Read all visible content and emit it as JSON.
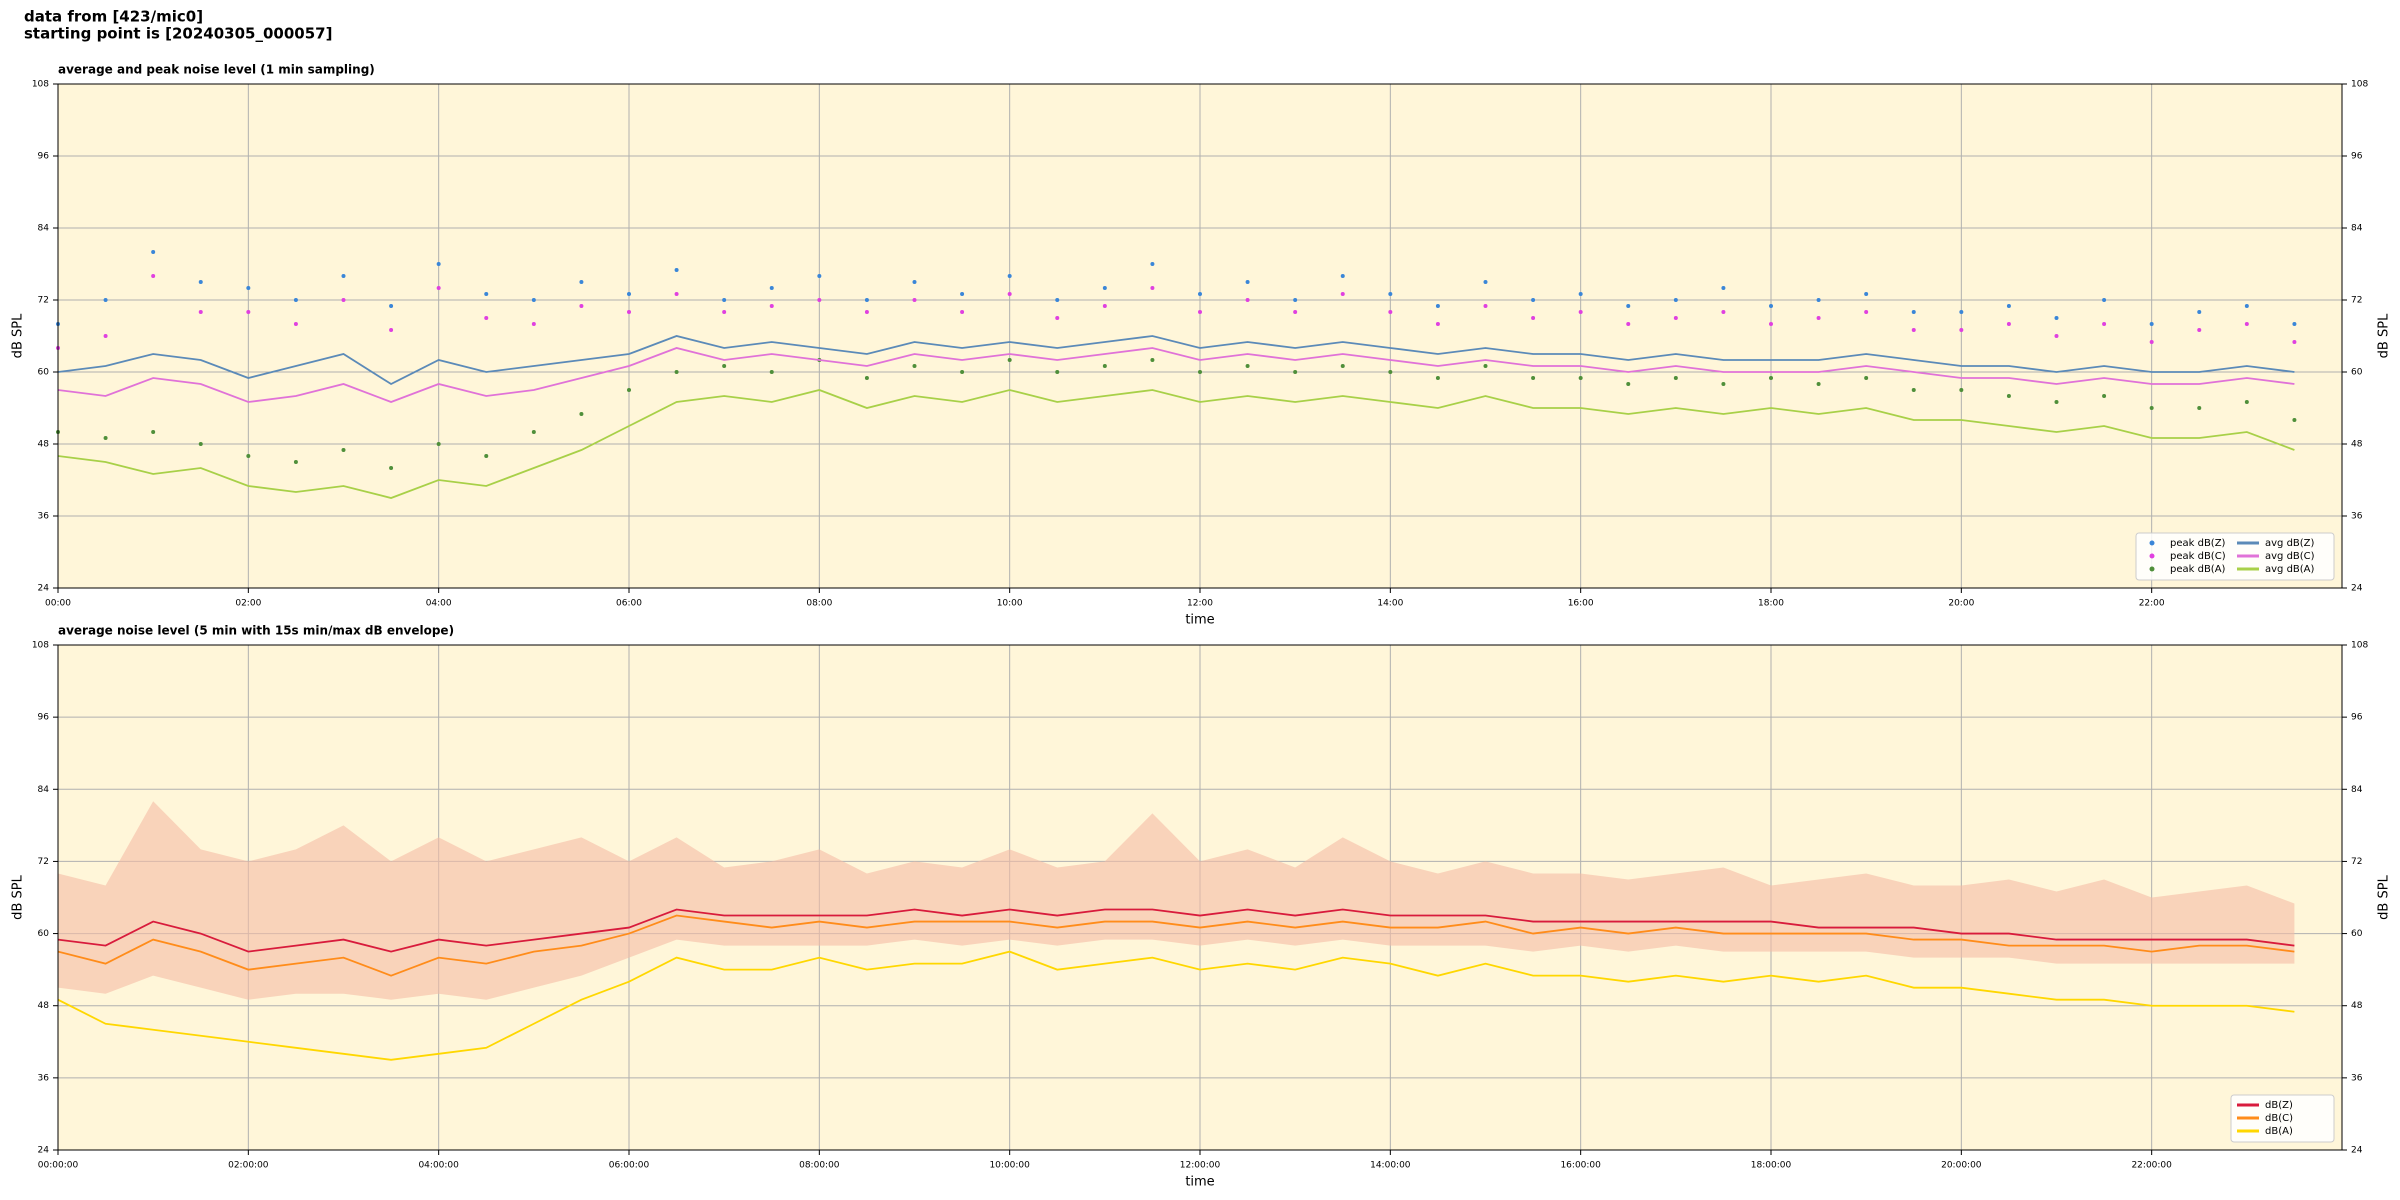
{
  "header": {
    "lines": [
      "data from [423/mic0]",
      "starting point is [20240305_000057]"
    ]
  },
  "chart_data": [
    {
      "type": "line",
      "title": "average and peak noise level (1 min sampling)",
      "xlabel": "time",
      "ylabel": "dB SPL",
      "xlim": [
        0,
        24
      ],
      "ylim": [
        24,
        108
      ],
      "yticks": [
        24,
        36,
        48,
        60,
        72,
        84,
        96,
        108
      ],
      "xticks": [
        {
          "value": 0,
          "label": "00:00"
        },
        {
          "value": 2,
          "label": "02:00"
        },
        {
          "value": 4,
          "label": "04:00"
        },
        {
          "value": 6,
          "label": "06:00"
        },
        {
          "value": 8,
          "label": "08:00"
        },
        {
          "value": 10,
          "label": "10:00"
        },
        {
          "value": 12,
          "label": "12:00"
        },
        {
          "value": 14,
          "label": "14:00"
        },
        {
          "value": 16,
          "label": "16:00"
        },
        {
          "value": 18,
          "label": "18:00"
        },
        {
          "value": 20,
          "label": "20:00"
        },
        {
          "value": 22,
          "label": "22:00"
        }
      ],
      "grid": true,
      "legend": "lower right",
      "legend_columns": 2,
      "x": [
        0,
        0.5,
        1,
        1.5,
        2,
        2.5,
        3,
        3.5,
        4,
        4.5,
        5,
        5.5,
        6,
        6.5,
        7,
        7.5,
        8,
        8.5,
        9,
        9.5,
        10,
        10.5,
        11,
        11.5,
        12,
        12.5,
        13,
        13.5,
        14,
        14.5,
        15,
        15.5,
        16,
        16.5,
        17,
        17.5,
        18,
        18.5,
        19,
        19.5,
        20,
        20.5,
        21,
        21.5,
        22,
        22.5,
        23,
        23.5
      ],
      "series": [
        {
          "name": "peak dB(Z)",
          "style": "dots",
          "color": "#3a86d8",
          "values": [
            68,
            72,
            80,
            75,
            74,
            72,
            76,
            71,
            78,
            73,
            72,
            75,
            73,
            77,
            72,
            74,
            76,
            72,
            75,
            73,
            76,
            72,
            74,
            78,
            73,
            75,
            72,
            76,
            73,
            71,
            75,
            72,
            73,
            71,
            72,
            74,
            71,
            72,
            73,
            70,
            70,
            71,
            69,
            72,
            68,
            70,
            71,
            68
          ]
        },
        {
          "name": "peak dB(C)",
          "style": "dots",
          "color": "#e040e0",
          "values": [
            64,
            66,
            76,
            70,
            70,
            68,
            72,
            67,
            74,
            69,
            68,
            71,
            70,
            73,
            70,
            71,
            72,
            70,
            72,
            70,
            73,
            69,
            71,
            74,
            70,
            72,
            70,
            73,
            70,
            68,
            71,
            69,
            70,
            68,
            69,
            70,
            68,
            69,
            70,
            67,
            67,
            68,
            66,
            68,
            65,
            67,
            68,
            65
          ]
        },
        {
          "name": "peak dB(A)",
          "style": "dots",
          "color": "#4f8f3a",
          "values": [
            50,
            49,
            50,
            48,
            46,
            45,
            47,
            44,
            48,
            46,
            50,
            53,
            57,
            60,
            61,
            60,
            62,
            59,
            61,
            60,
            62,
            60,
            61,
            62,
            60,
            61,
            60,
            61,
            60,
            59,
            61,
            59,
            59,
            58,
            59,
            58,
            59,
            58,
            59,
            57,
            57,
            56,
            55,
            56,
            54,
            54,
            55,
            52
          ]
        },
        {
          "name": "avg dB(Z)",
          "style": "line",
          "color": "#5b8ab8",
          "values": [
            60,
            61,
            63,
            62,
            59,
            61,
            63,
            58,
            62,
            60,
            61,
            62,
            63,
            66,
            64,
            65,
            64,
            63,
            65,
            64,
            65,
            64,
            65,
            66,
            64,
            65,
            64,
            65,
            64,
            63,
            64,
            63,
            63,
            62,
            63,
            62,
            62,
            62,
            63,
            62,
            61,
            61,
            60,
            61,
            60,
            60,
            61,
            60
          ]
        },
        {
          "name": "avg dB(C)",
          "style": "line",
          "color": "#e072d8",
          "values": [
            57,
            56,
            59,
            58,
            55,
            56,
            58,
            55,
            58,
            56,
            57,
            59,
            61,
            64,
            62,
            63,
            62,
            61,
            63,
            62,
            63,
            62,
            63,
            64,
            62,
            63,
            62,
            63,
            62,
            61,
            62,
            61,
            61,
            60,
            61,
            60,
            60,
            60,
            61,
            60,
            59,
            59,
            58,
            59,
            58,
            58,
            59,
            58
          ]
        },
        {
          "name": "avg dB(A)",
          "style": "line",
          "color": "#a8d048",
          "values": [
            46,
            45,
            43,
            44,
            41,
            40,
            41,
            39,
            42,
            41,
            44,
            47,
            51,
            55,
            56,
            55,
            57,
            54,
            56,
            55,
            57,
            55,
            56,
            57,
            55,
            56,
            55,
            56,
            55,
            54,
            56,
            54,
            54,
            53,
            54,
            53,
            54,
            53,
            54,
            52,
            52,
            51,
            50,
            51,
            49,
            49,
            50,
            47
          ]
        }
      ]
    },
    {
      "type": "line",
      "title": "average noise level (5 min with 15s min/max dB envelope)",
      "xlabel": "time",
      "ylabel": "dB SPL",
      "xlim": [
        0,
        24
      ],
      "ylim": [
        24,
        108
      ],
      "yticks": [
        24,
        36,
        48,
        60,
        72,
        84,
        96,
        108
      ],
      "xticks": [
        {
          "value": 0,
          "label": "00:00:00"
        },
        {
          "value": 2,
          "label": "02:00:00"
        },
        {
          "value": 4,
          "label": "04:00:00"
        },
        {
          "value": 6,
          "label": "06:00:00"
        },
        {
          "value": 8,
          "label": "08:00:00"
        },
        {
          "value": 10,
          "label": "10:00:00"
        },
        {
          "value": 12,
          "label": "12:00:00"
        },
        {
          "value": 14,
          "label": "14:00:00"
        },
        {
          "value": 16,
          "label": "16:00:00"
        },
        {
          "value": 18,
          "label": "18:00:00"
        },
        {
          "value": 20,
          "label": "20:00:00"
        },
        {
          "value": 22,
          "label": "22:00:00"
        }
      ],
      "grid": true,
      "legend": "lower right",
      "legend_columns": 1,
      "x": [
        0,
        0.5,
        1,
        1.5,
        2,
        2.5,
        3,
        3.5,
        4,
        4.5,
        5,
        5.5,
        6,
        6.5,
        7,
        7.5,
        8,
        8.5,
        9,
        9.5,
        10,
        10.5,
        11,
        11.5,
        12,
        12.5,
        13,
        13.5,
        14,
        14.5,
        15,
        15.5,
        16,
        16.5,
        17,
        17.5,
        18,
        18.5,
        19,
        19.5,
        20,
        20.5,
        21,
        21.5,
        22,
        22.5,
        23,
        23.5
      ],
      "envelope": {
        "color": "#f5bda5",
        "min": [
          51,
          50,
          53,
          51,
          49,
          50,
          50,
          49,
          50,
          49,
          51,
          53,
          56,
          59,
          58,
          58,
          58,
          58,
          59,
          58,
          59,
          58,
          59,
          59,
          58,
          59,
          58,
          59,
          58,
          58,
          58,
          57,
          58,
          57,
          58,
          57,
          57,
          57,
          57,
          56,
          56,
          56,
          55,
          55,
          55,
          55,
          55,
          55
        ],
        "max": [
          70,
          68,
          82,
          74,
          72,
          74,
          78,
          72,
          76,
          72,
          74,
          76,
          72,
          76,
          71,
          72,
          74,
          70,
          72,
          71,
          74,
          71,
          72,
          80,
          72,
          74,
          71,
          76,
          72,
          70,
          72,
          70,
          70,
          69,
          70,
          71,
          68,
          69,
          70,
          68,
          68,
          69,
          67,
          69,
          66,
          67,
          68,
          65
        ]
      },
      "series": [
        {
          "name": "dB(Z)",
          "style": "line",
          "color": "#d81b3c",
          "values": [
            59,
            58,
            62,
            60,
            57,
            58,
            59,
            57,
            59,
            58,
            59,
            60,
            61,
            64,
            63,
            63,
            63,
            63,
            64,
            63,
            64,
            63,
            64,
            64,
            63,
            64,
            63,
            64,
            63,
            63,
            63,
            62,
            62,
            62,
            62,
            62,
            62,
            61,
            61,
            61,
            60,
            60,
            59,
            59,
            59,
            59,
            59,
            58
          ]
        },
        {
          "name": "dB(C)",
          "style": "line",
          "color": "#ff8c1a",
          "values": [
            57,
            55,
            59,
            57,
            54,
            55,
            56,
            53,
            56,
            55,
            57,
            58,
            60,
            63,
            62,
            61,
            62,
            61,
            62,
            62,
            62,
            61,
            62,
            62,
            61,
            62,
            61,
            62,
            61,
            61,
            62,
            60,
            61,
            60,
            61,
            60,
            60,
            60,
            60,
            59,
            59,
            58,
            58,
            58,
            57,
            58,
            58,
            57
          ]
        },
        {
          "name": "dB(A)",
          "style": "line",
          "color": "#ffd700",
          "values": [
            49,
            45,
            44,
            43,
            42,
            41,
            40,
            39,
            40,
            41,
            45,
            49,
            52,
            56,
            54,
            54,
            56,
            54,
            55,
            55,
            57,
            54,
            55,
            56,
            54,
            55,
            54,
            56,
            55,
            53,
            55,
            53,
            53,
            52,
            53,
            52,
            53,
            52,
            53,
            51,
            51,
            50,
            49,
            49,
            48,
            48,
            48,
            47
          ]
        }
      ]
    }
  ]
}
